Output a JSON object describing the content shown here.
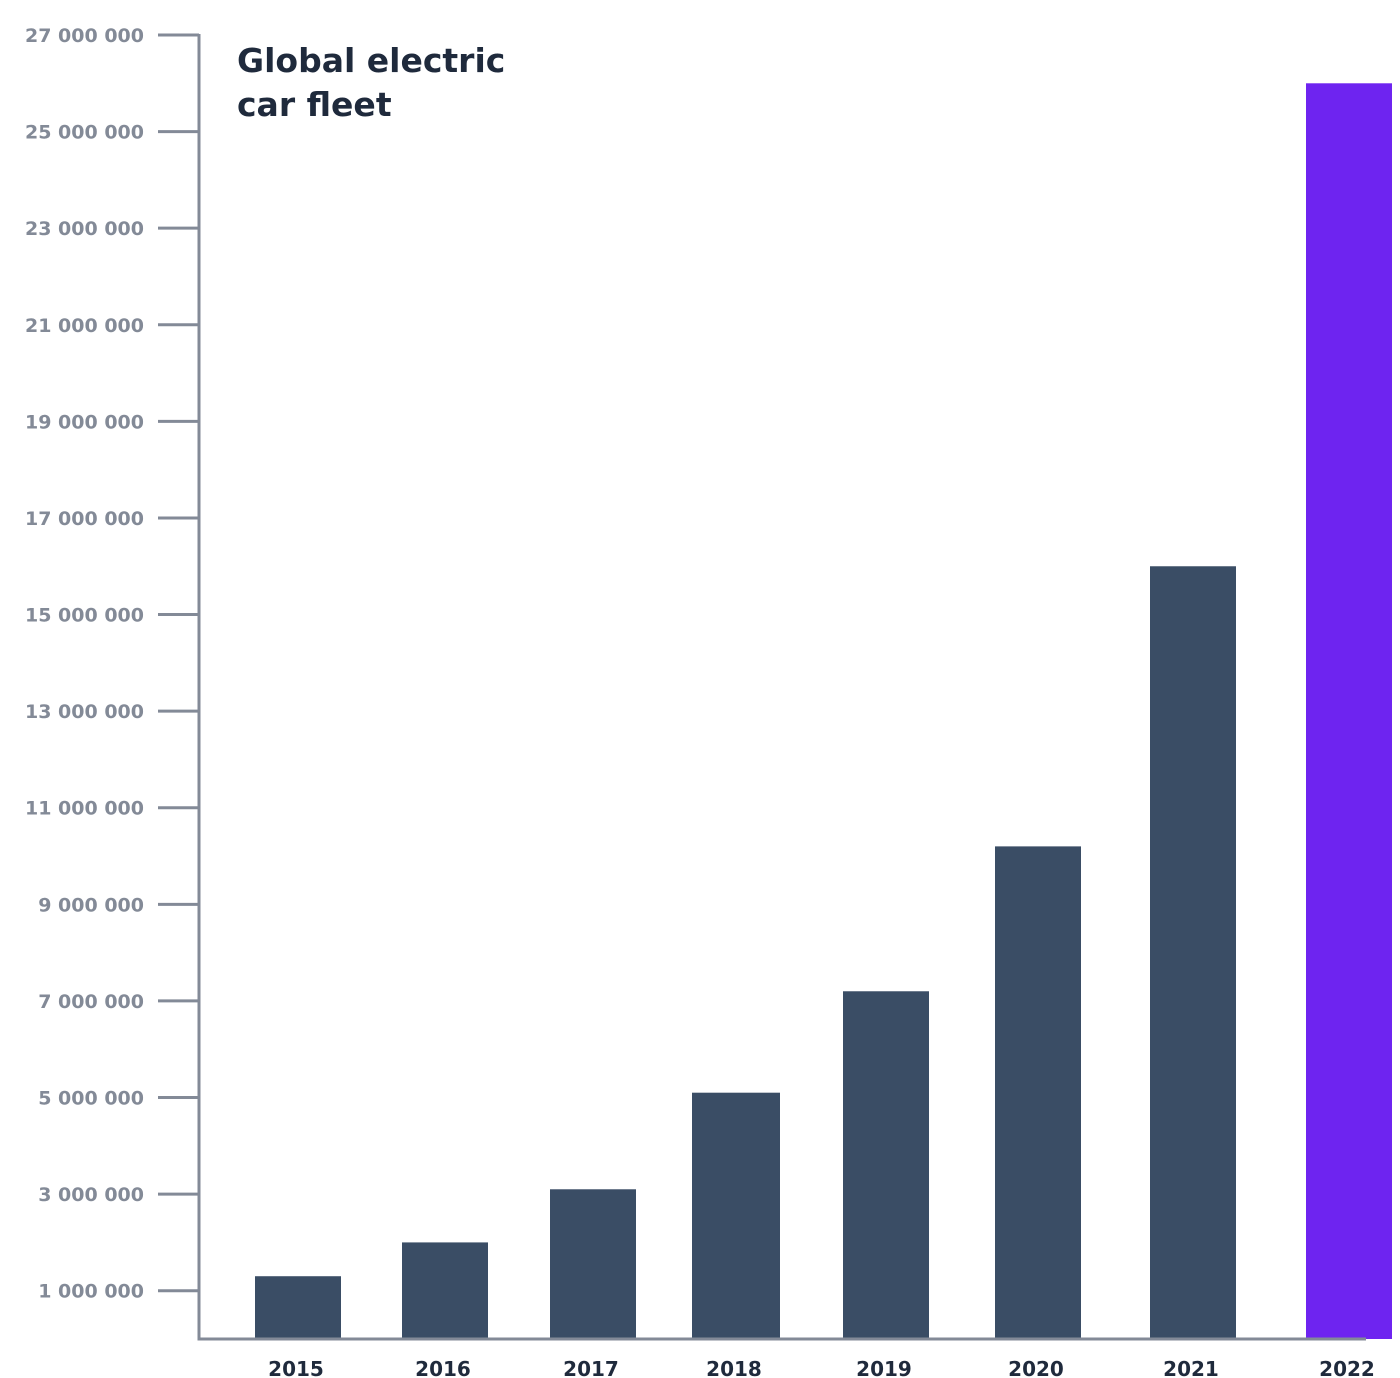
{
  "chart_data": {
    "type": "bar",
    "title_lines": [
      "Global electric",
      "car fleet"
    ],
    "xlabel": "",
    "ylabel": "",
    "categories": [
      "2015",
      "2016",
      "2017",
      "2018",
      "2019",
      "2020",
      "2021",
      "2022"
    ],
    "values": [
      1300000,
      2000000,
      3100000,
      5100000,
      7200000,
      10200000,
      16000000,
      26000000
    ],
    "bar_colors": [
      "#3a4d65",
      "#3a4d65",
      "#3a4d65",
      "#3a4d65",
      "#3a4d65",
      "#3a4d65",
      "#3a4d65",
      "#6e24f0"
    ],
    "yticks": [
      1000000,
      3000000,
      5000000,
      7000000,
      9000000,
      11000000,
      13000000,
      15000000,
      17000000,
      19000000,
      21000000,
      23000000,
      25000000,
      27000000
    ],
    "ytick_labels": [
      "1 000 000",
      "3 000 000",
      "5 000 000",
      "7 000 000",
      "9 000 000",
      "11 000 000",
      "13 000 000",
      "15 000 000",
      "17 000 000",
      "19 000 000",
      "21 000 000",
      "23 000 000",
      "25 000 000",
      "27 000 000"
    ],
    "ylim": [
      0,
      27000000
    ],
    "grid": false,
    "legend": "none",
    "axis_color": "#838a97"
  }
}
